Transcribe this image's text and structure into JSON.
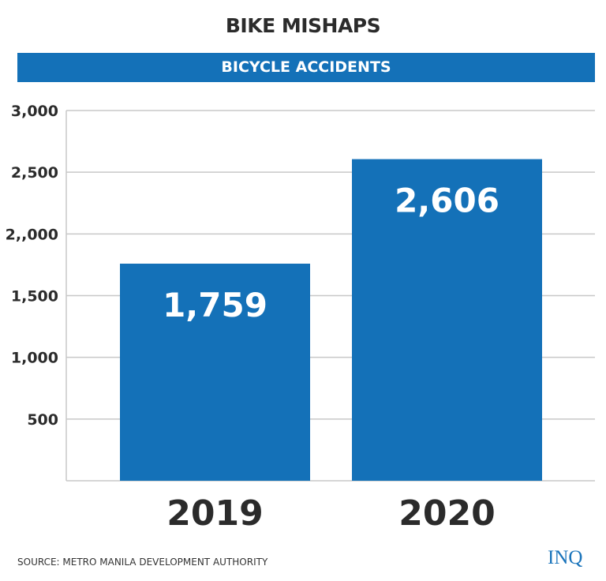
{
  "title": "BIKE MISHAPS",
  "banner": "BICYCLE ACCIDENTS",
  "source": "SOURCE:  METRO MANILA DEVELOPMENT AUTHORITY",
  "logo": "INQ",
  "colors": {
    "bar": "#1471b8",
    "banner": "#1471b8",
    "grid": "#c8c8c8",
    "text": "#2b2b2b"
  },
  "chart_data": {
    "type": "bar",
    "categories": [
      "2019",
      "2020"
    ],
    "values": [
      1759,
      2606
    ],
    "data_labels": [
      "1,759",
      "2,606"
    ],
    "ylim": [
      0,
      3000
    ],
    "yticks": [
      500,
      1000,
      1500,
      2000,
      2500,
      3000
    ],
    "ytick_labels": [
      "500",
      "1,000",
      "1,500",
      "2,,000",
      "2,500",
      "3,000"
    ],
    "grid": true,
    "xlabel": "",
    "ylabel": ""
  }
}
